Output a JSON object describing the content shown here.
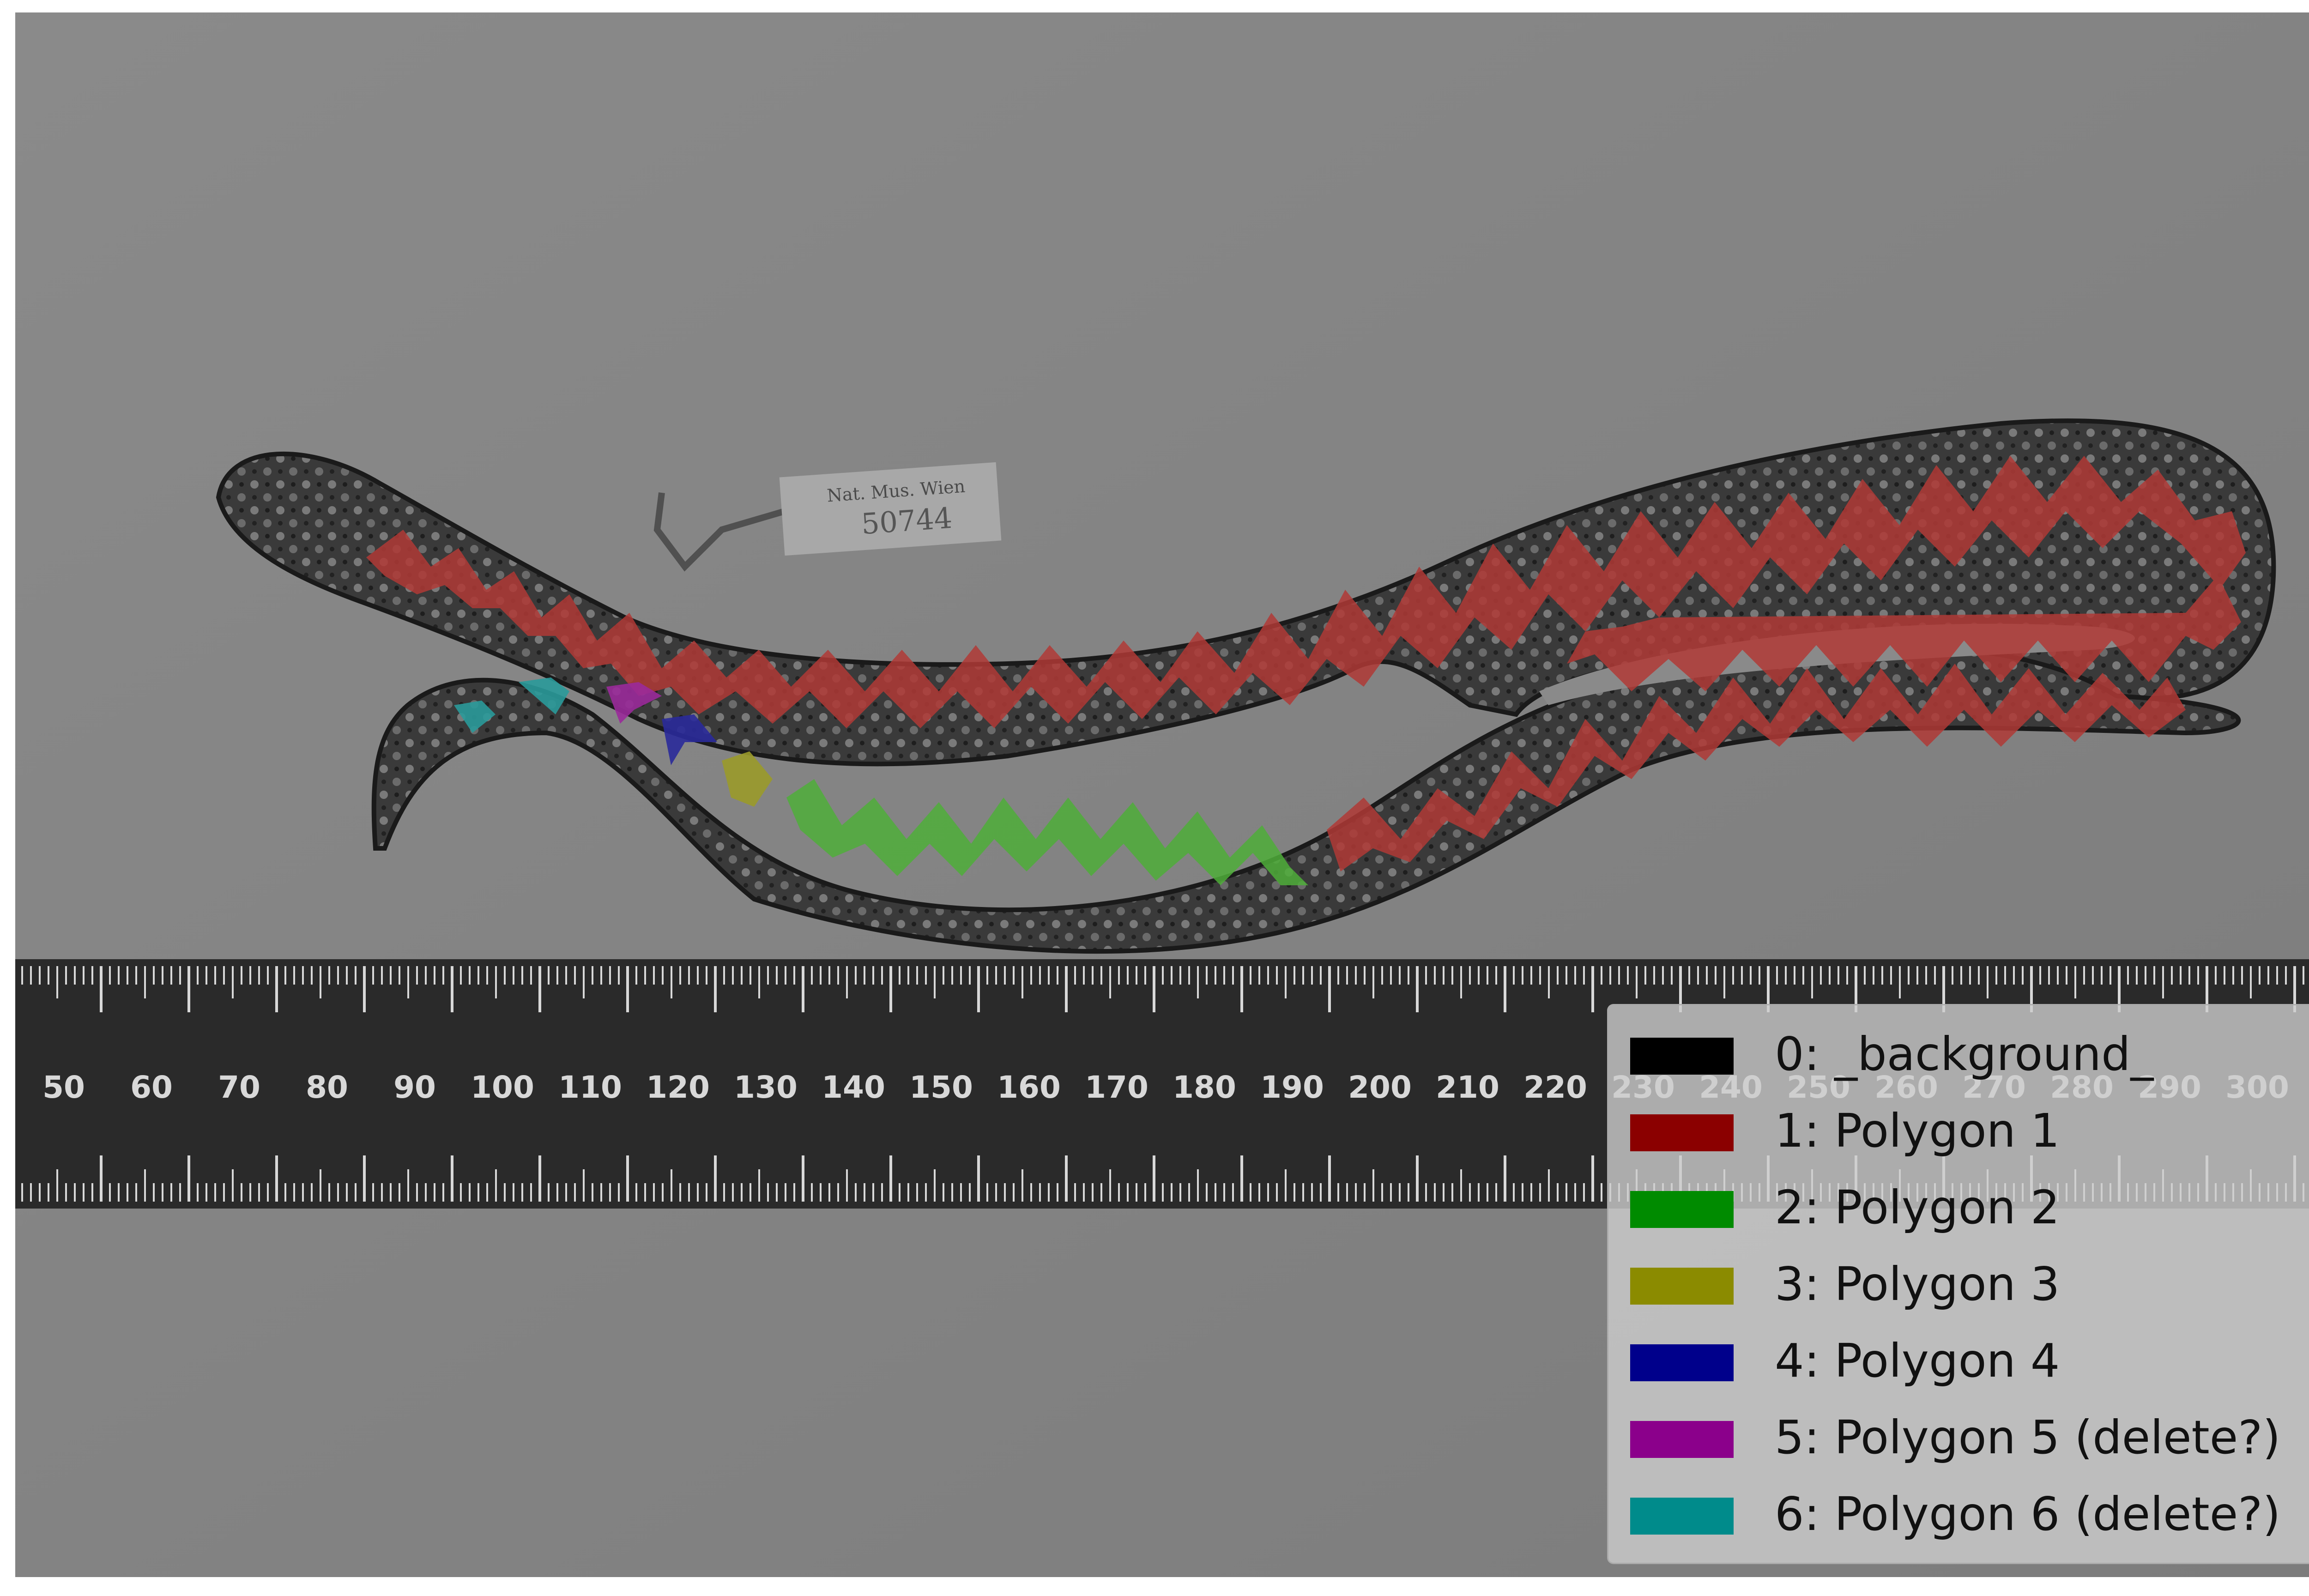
{
  "image": {
    "description_free": true,
    "ruler": {
      "numbers": [
        "50",
        "60",
        "70",
        "80",
        "90",
        "100",
        "110",
        "120",
        "130",
        "140",
        "150",
        "160",
        "170",
        "180",
        "190",
        "200",
        "210",
        "220",
        "230",
        "240",
        "250",
        "260",
        "270",
        "280",
        "290",
        "300"
      ]
    },
    "tag_text": "Nat. Mus. Wien",
    "tag_number": "50744"
  },
  "legend": {
    "entries": [
      {
        "label": "0: _background_",
        "color": "#000000"
      },
      {
        "label": "1: Polygon 1",
        "color": "#8b0000"
      },
      {
        "label": "2: Polygon 2",
        "color": "#008b00"
      },
      {
        "label": "3: Polygon 3",
        "color": "#8b8b00"
      },
      {
        "label": "4: Polygon 4",
        "color": "#00008b"
      },
      {
        "label": "5: Polygon 5 (delete?)",
        "color": "#8b008b"
      },
      {
        "label": "6: Polygon 6 (delete?)",
        "color": "#008b8b"
      }
    ]
  }
}
